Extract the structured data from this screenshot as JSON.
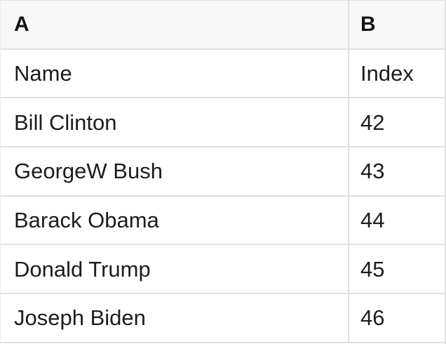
{
  "table": {
    "header": {
      "col_a": "A",
      "col_b": "B"
    },
    "rows": [
      {
        "a": "Name",
        "b": "Index"
      },
      {
        "a": "Bill Clinton",
        "b": "42"
      },
      {
        "a": "GeorgeW Bush",
        "b": "43"
      },
      {
        "a": "Barack Obama",
        "b": "44"
      },
      {
        "a": "Donald Trump",
        "b": "45"
      },
      {
        "a": "Joseph Biden",
        "b": "46"
      }
    ]
  },
  "colors": {
    "header_background": "#f7f7f7",
    "cell_background": "#ffffff",
    "grid_border": "#e0e0e0",
    "text": "#1c1c1c"
  }
}
